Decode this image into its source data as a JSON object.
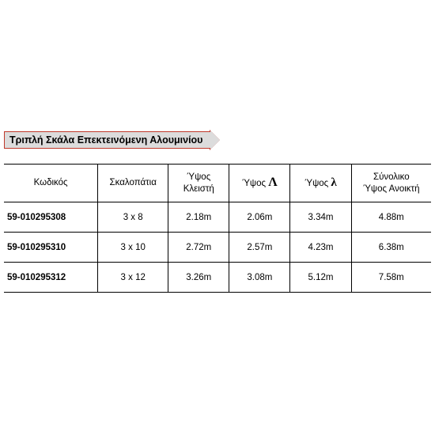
{
  "banner": {
    "title": "Τριπλή Σκάλα Επεκτεινόμενη Αλουμινίου",
    "background_color": "#dcdcdc",
    "border_color": "#c0392b",
    "text_color": "#000000",
    "font_size": 12.5,
    "font_weight": "bold"
  },
  "table": {
    "type": "table",
    "border_color": "#000000",
    "background_color": "#ffffff",
    "text_color": "#000000",
    "header_font_size": 11.5,
    "cell_font_size": 11.5,
    "columns": [
      {
        "label": "Κωδικός",
        "width_pct": 20,
        "align": "center"
      },
      {
        "label": "Σκαλοπάτια",
        "width_pct": 15,
        "align": "center"
      },
      {
        "label_line1": "Ύψος",
        "label_line2": "Κλειστή",
        "width_pct": 13,
        "align": "center"
      },
      {
        "label_prefix": "Ύψος ",
        "symbol": "Λ",
        "symbol_style": "uppercase",
        "width_pct": 13,
        "align": "center"
      },
      {
        "label_prefix": "Ύψος ",
        "symbol": "λ",
        "symbol_style": "lowercase",
        "width_pct": 13,
        "align": "center"
      },
      {
        "label_line1": "Σύνολικο",
        "label_line2": "Ύψος Ανοικτή",
        "width_pct": 17,
        "align": "center"
      }
    ],
    "rows": [
      [
        "59-010295308",
        "3 x 8",
        "2.18m",
        "2.06m",
        "3.34m",
        "4.88m"
      ],
      [
        "59-010295310",
        "3 x 10",
        "2.72m",
        "2.57m",
        "4.23m",
        "6.38m"
      ],
      [
        "59-010295312",
        "3 x 12",
        "3.26m",
        "3.08m",
        "5.12m",
        "7.58m"
      ]
    ],
    "first_col_bold": true,
    "first_col_align": "left",
    "row_height_header": 48,
    "row_height_body": 38
  }
}
